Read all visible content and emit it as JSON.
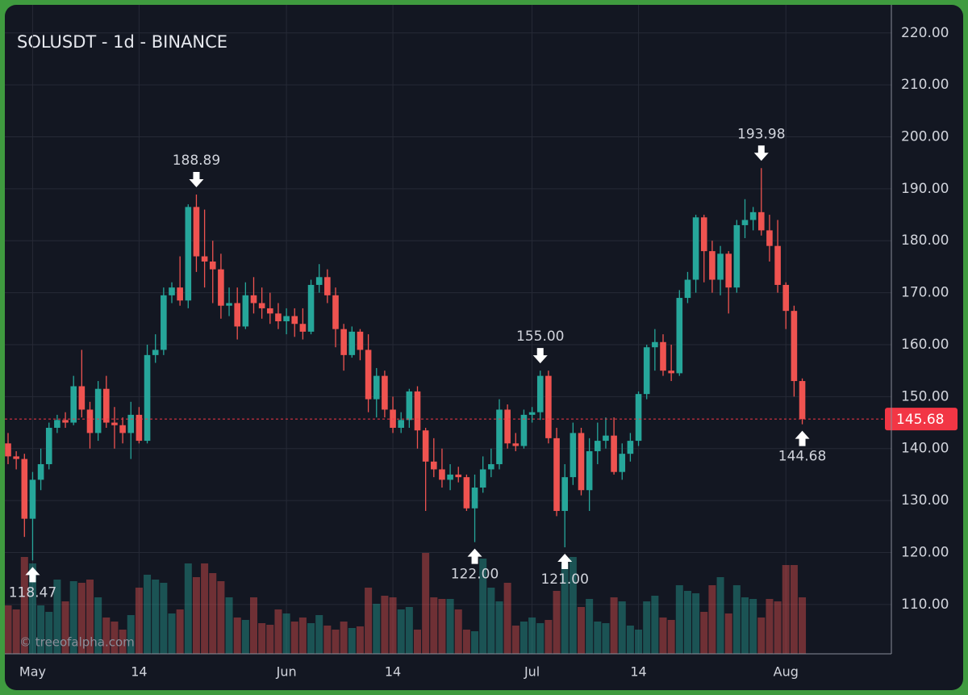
{
  "chart_data": {
    "type": "candlestick",
    "title": "SOLUSDT - 1d - BINANCE",
    "watermark": "© treeofalpha.com",
    "x": [
      "04-28",
      "04-29",
      "04-30",
      "05-01",
      "05-02",
      "05-03",
      "05-04",
      "05-05",
      "05-06",
      "05-07",
      "05-08",
      "05-09",
      "05-10",
      "05-11",
      "05-12",
      "05-13",
      "05-14",
      "05-15",
      "05-16",
      "05-17",
      "05-18",
      "05-19",
      "05-20",
      "05-21",
      "05-22",
      "05-23",
      "05-24",
      "05-25",
      "05-26",
      "05-27",
      "05-28",
      "05-29",
      "05-30",
      "05-31",
      "06-01",
      "06-02",
      "06-03",
      "06-04",
      "06-05",
      "06-06",
      "06-07",
      "06-08",
      "06-09",
      "06-10",
      "06-11",
      "06-12",
      "06-13",
      "06-14",
      "06-15",
      "06-16",
      "06-17",
      "06-18",
      "06-19",
      "06-20",
      "06-21",
      "06-22",
      "06-23",
      "06-24",
      "06-25",
      "06-26",
      "06-27",
      "06-28",
      "06-29",
      "06-30",
      "07-01",
      "07-02",
      "07-03",
      "07-04",
      "07-05",
      "07-06",
      "07-07",
      "07-08",
      "07-09",
      "07-10",
      "07-11",
      "07-12",
      "07-13",
      "07-14",
      "07-15",
      "07-16",
      "07-17",
      "07-18",
      "07-19",
      "07-20",
      "07-21",
      "07-22",
      "07-23",
      "07-24",
      "07-25",
      "07-26",
      "07-27",
      "07-28",
      "07-29",
      "07-30",
      "07-31",
      "08-01",
      "08-02",
      "08-03"
    ],
    "open": [
      141,
      138.5,
      138,
      126.5,
      134,
      137,
      144,
      145.5,
      145,
      152,
      147.5,
      143,
      151.5,
      145,
      144.5,
      143,
      146.5,
      141.5,
      158,
      159,
      169.5,
      171,
      168.5,
      186.5,
      177,
      176,
      174.5,
      167.5,
      168,
      163.5,
      169.5,
      168,
      167,
      166,
      164.5,
      165.5,
      164,
      162.5,
      171.5,
      173,
      169.5,
      163,
      158,
      162.5,
      159,
      149.5,
      154,
      147.5,
      144,
      145.5,
      151,
      143.5,
      137.5,
      136,
      134,
      135,
      134.5,
      128.5,
      132.5,
      136,
      137,
      147.5,
      141,
      140.5,
      146.5,
      147,
      154,
      142,
      128,
      134.5,
      143,
      132,
      139.5,
      141.5,
      142.5,
      135.5,
      139,
      141.5,
      150.5,
      159.5,
      160.5,
      155,
      154.5,
      169,
      172.5,
      184.5,
      178,
      172.5,
      177.5,
      171,
      183,
      184,
      185.5,
      182,
      179,
      171.5,
      166.5,
      153
    ],
    "high": [
      143,
      139.5,
      139,
      135.5,
      140,
      145,
      146.5,
      147,
      154,
      159,
      149,
      153,
      154,
      148,
      146,
      149,
      148,
      160,
      162,
      171,
      172,
      177,
      187,
      188.89,
      186,
      180,
      177.5,
      171,
      171,
      172,
      173,
      171,
      170,
      168,
      167,
      167,
      167,
      172.5,
      175.5,
      174.5,
      171,
      164,
      163.5,
      163,
      162,
      155.5,
      155,
      150,
      147,
      151.5,
      152,
      144,
      142,
      140,
      137,
      136.5,
      135,
      135,
      138.5,
      140,
      149.5,
      148.5,
      143,
      147.5,
      148,
      155,
      155,
      144,
      137,
      145,
      144,
      142,
      145,
      146,
      146,
      141,
      143,
      151,
      160,
      163,
      162,
      160,
      170.5,
      174,
      185,
      185,
      180,
      179,
      178,
      184,
      188,
      186.5,
      193.98,
      185,
      184,
      172,
      167.5,
      153.5
    ],
    "low": [
      137,
      136,
      123,
      118.47,
      132,
      136,
      143,
      144,
      144.5,
      146,
      140,
      141.5,
      144,
      140,
      141,
      138,
      141,
      141,
      156.5,
      158,
      168,
      167.5,
      167,
      174,
      171,
      168,
      165,
      165.5,
      161,
      163,
      166,
      165,
      164,
      163,
      162,
      161.5,
      161,
      162,
      170,
      168,
      159.5,
      155,
      157.5,
      157,
      147,
      146,
      146,
      143,
      143,
      144,
      140,
      128,
      134.5,
      132.5,
      132,
      133.5,
      128,
      122,
      131.5,
      134.5,
      136,
      140,
      139.5,
      140,
      145,
      145.5,
      141,
      127,
      121,
      133,
      131,
      128,
      137,
      140,
      135,
      134,
      137.5,
      140.5,
      149.5,
      155,
      154,
      153,
      154,
      168,
      170,
      172,
      170,
      169.5,
      166,
      170,
      180.5,
      182,
      181,
      176,
      170,
      163,
      150,
      144.68
    ],
    "close": [
      138.5,
      138,
      126.5,
      134,
      137,
      144,
      145.5,
      145,
      152,
      147.5,
      143,
      151.5,
      145,
      144.5,
      143,
      146.5,
      141.5,
      158,
      159,
      169.5,
      171,
      168.5,
      186.5,
      177,
      176,
      174.5,
      167.5,
      168,
      163.5,
      169.5,
      168,
      167,
      166,
      164.5,
      165.5,
      164,
      162.5,
      171.5,
      173,
      169.5,
      163,
      158,
      162.5,
      159,
      149.5,
      154,
      147.5,
      144,
      145.5,
      151,
      143.5,
      137.5,
      136,
      134,
      135,
      134.5,
      128.5,
      132.5,
      136,
      137,
      147.5,
      141,
      140.5,
      146.5,
      147,
      154,
      142,
      128,
      134.5,
      143,
      132,
      139.5,
      141.5,
      142.5,
      135.5,
      139,
      141.5,
      150.5,
      159.5,
      160.5,
      155,
      154.5,
      169,
      172.5,
      184.5,
      178,
      172.5,
      177.5,
      171,
      183,
      184,
      185.5,
      182,
      179,
      171.5,
      166.5,
      153,
      145.68
    ],
    "volume": [
      60,
      55,
      120,
      112,
      60,
      52,
      92,
      65,
      90,
      88,
      92,
      70,
      45,
      40,
      30,
      48,
      82,
      98,
      92,
      88,
      50,
      55,
      112,
      95,
      112,
      100,
      90,
      70,
      45,
      42,
      70,
      38,
      36,
      55,
      50,
      40,
      45,
      38,
      48,
      35,
      30,
      40,
      32,
      34,
      82,
      62,
      72,
      70,
      55,
      58,
      30,
      125,
      70,
      68,
      68,
      55,
      30,
      28,
      118,
      82,
      65,
      88,
      35,
      40,
      45,
      38,
      42,
      78,
      112,
      120,
      58,
      68,
      40,
      38,
      70,
      65,
      35,
      30,
      65,
      72,
      45,
      42,
      85,
      78,
      75,
      52,
      85,
      95,
      50,
      85,
      70,
      68,
      45,
      68,
      65,
      110,
      110,
      70
    ],
    "up_color": "#26a69a",
    "down_color": "#ef5350",
    "ylim": [
      100.5,
      225.4
    ],
    "yticks": [
      {
        "value": 110,
        "label": "110.00"
      },
      {
        "value": 120,
        "label": "120.00"
      },
      {
        "value": 130,
        "label": "130.00"
      },
      {
        "value": 140,
        "label": "140.00"
      },
      {
        "value": 150,
        "label": "150.00"
      },
      {
        "value": 160,
        "label": "160.00"
      },
      {
        "value": 170,
        "label": "170.00"
      },
      {
        "value": 180,
        "label": "180.00"
      },
      {
        "value": 190,
        "label": "190.00"
      },
      {
        "value": 200,
        "label": "200.00"
      },
      {
        "value": 210,
        "label": "210.00"
      },
      {
        "value": 220,
        "label": "220.00"
      }
    ],
    "xticks": [
      {
        "value": "05-01",
        "label": "May"
      },
      {
        "value": "05-14",
        "label": "14"
      },
      {
        "value": "06-01",
        "label": "Jun"
      },
      {
        "value": "06-14",
        "label": "14"
      },
      {
        "value": "07-01",
        "label": "Jul"
      },
      {
        "value": "07-14",
        "label": "14"
      },
      {
        "value": "08-01",
        "label": "Aug"
      }
    ],
    "grid": true,
    "annotations": [
      {
        "x": "05-01",
        "value": 118.47,
        "label": "118.47"
      },
      {
        "x": "05-21",
        "value": 188.89,
        "label": "188.89"
      },
      {
        "x": "06-24",
        "value": 122,
        "label": "122.00"
      },
      {
        "x": "07-02",
        "value": 155,
        "label": "155.00"
      },
      {
        "x": "07-05",
        "value": 121,
        "label": "121.00"
      },
      {
        "x": "07-29",
        "value": 193.98,
        "label": "193.98"
      },
      {
        "x": "08-03",
        "value": 144.68,
        "label": "144.68"
      }
    ],
    "last_price": {
      "value": 145.68,
      "label": "145.68"
    },
    "last_price_color": "#f23645"
  }
}
